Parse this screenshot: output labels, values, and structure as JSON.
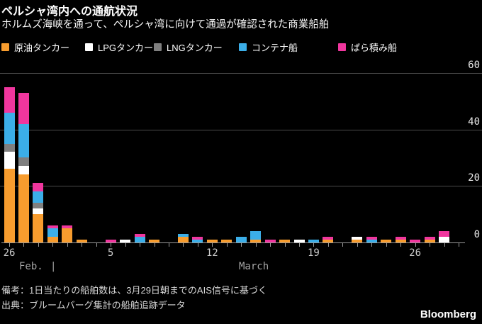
{
  "header": {
    "title": "ペルシャ湾内への通航状況",
    "subtitle": "ホルムズ海峡を通って、ペルシャ湾に向けて通過が確認された商業船舶"
  },
  "legend": [
    {
      "label": "原油タンカー",
      "color": "#F79C2E"
    },
    {
      "label": "LPGタンカー",
      "color": "#FFFFFF"
    },
    {
      "label": "LNGタンカー",
      "color": "#7F7F7F"
    },
    {
      "label": "コンテナ船",
      "color": "#3BAEE8"
    },
    {
      "label": "ばら積み船",
      "color": "#F0369E"
    }
  ],
  "chart_data": {
    "type": "bar",
    "stacked": true,
    "grid": true,
    "legend_position": "top",
    "ylim": [
      0,
      60
    ],
    "yticks": [
      0,
      20,
      40,
      60
    ],
    "categories": [
      "Feb. 26",
      "Feb. 27",
      "Feb. 28",
      "March 1",
      "March 2",
      "March 3",
      "March 4",
      "March 5",
      "March 6",
      "March 7",
      "March 8",
      "March 9",
      "March 10",
      "March 11",
      "March 12",
      "March 13",
      "March 14",
      "March 15",
      "March 16",
      "March 17",
      "March 18",
      "March 19",
      "March 20",
      "March 21",
      "March 22",
      "March 23",
      "March 24",
      "March 25",
      "March 26",
      "March 27",
      "March 28",
      "March 29"
    ],
    "series": [
      {
        "name": "原油タンカー",
        "color": "#F79C2E",
        "values": [
          26,
          24,
          10,
          2,
          5,
          1,
          0,
          0,
          0,
          0,
          1,
          0,
          2,
          0,
          1,
          1,
          0,
          1,
          0,
          1,
          0,
          0,
          1,
          0,
          1,
          0,
          1,
          1,
          0,
          1,
          0,
          0
        ]
      },
      {
        "name": "LPGタンカー",
        "color": "#FFFFFF",
        "values": [
          6,
          3,
          2,
          0,
          0,
          0,
          0,
          0,
          1,
          0,
          0,
          0,
          0,
          0,
          0,
          0,
          0,
          0,
          0,
          0,
          1,
          0,
          0,
          0,
          1,
          0,
          0,
          0,
          0,
          0,
          2,
          0
        ]
      },
      {
        "name": "LNGタンカー",
        "color": "#7F7F7F",
        "values": [
          3,
          3,
          2,
          0,
          0,
          0,
          0,
          0,
          0,
          0,
          0,
          0,
          0,
          0,
          0,
          0,
          0,
          0,
          0,
          0,
          0,
          0,
          0,
          0,
          0,
          0,
          0,
          0,
          0,
          0,
          0,
          0
        ]
      },
      {
        "name": "コンテナ船",
        "color": "#3BAEE8",
        "values": [
          11,
          12,
          4,
          3,
          0,
          0,
          0,
          0,
          0,
          2,
          0,
          0,
          1,
          1,
          0,
          0,
          2,
          3,
          0,
          0,
          0,
          1,
          0,
          0,
          0,
          1,
          0,
          0,
          0,
          0,
          0,
          0
        ]
      },
      {
        "name": "ばら積み船",
        "color": "#F0369E",
        "values": [
          9,
          11,
          3,
          1,
          1,
          0,
          0,
          1,
          0,
          1,
          0,
          0,
          0,
          1,
          0,
          0,
          0,
          0,
          1,
          0,
          0,
          0,
          1,
          0,
          0,
          1,
          0,
          1,
          1,
          1,
          2,
          0
        ]
      }
    ],
    "xticks": [
      {
        "day_index": 0,
        "label": "26"
      },
      {
        "day_index": 7,
        "label": "5"
      },
      {
        "day_index": 14,
        "label": "12"
      },
      {
        "day_index": 21,
        "label": "19"
      },
      {
        "day_index": 28,
        "label": "26"
      }
    ],
    "month_labels": [
      {
        "label": "Feb.",
        "x": 27
      },
      {
        "label": "|",
        "x": 71
      },
      {
        "label": "March",
        "x": 337
      }
    ]
  },
  "footer": {
    "note": "備考：1日当たりの船舶数は、3月29日朝までのAIS信号に基づく",
    "source": "出典：ブルームバーグ集計の船舶追跡データ",
    "brand": "Bloomberg"
  }
}
